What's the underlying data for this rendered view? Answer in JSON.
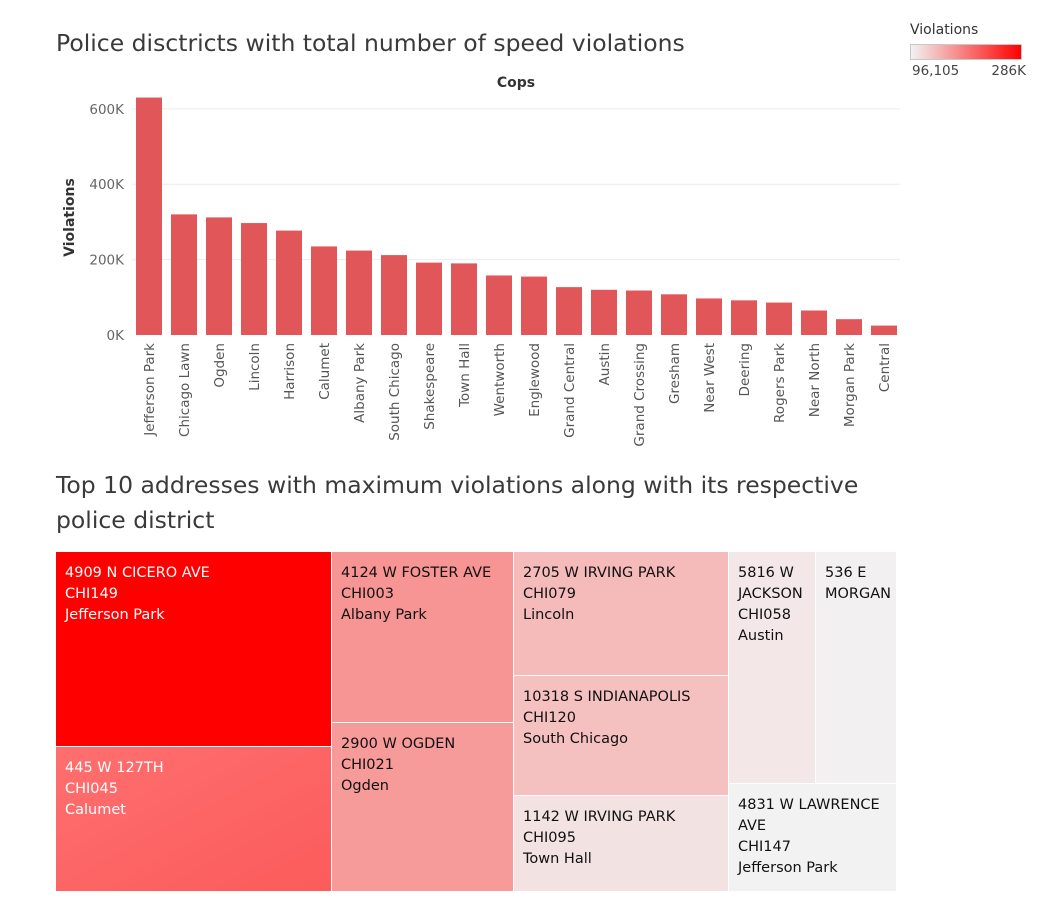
{
  "title_top": "Police disctricts with total number of speed violations",
  "title_bottom": "Top 10 addresses with maximum violations along with its respective police district",
  "legend": {
    "title": "Violations",
    "min_label": "96,105",
    "max_label": "286K",
    "colors": [
      "#f2f2f2",
      "#ff0000"
    ]
  },
  "chart_data": [
    {
      "type": "bar",
      "title": "",
      "column_header": "Cops",
      "xlabel": "",
      "ylabel": "Violations",
      "ylim": [
        0,
        650000
      ],
      "yticks": [
        0,
        200000,
        400000,
        600000
      ],
      "ytick_labels": [
        "0K",
        "200K",
        "400K",
        "600K"
      ],
      "grid": true,
      "bar_color": "#e15759",
      "categories": [
        "Jefferson Park",
        "Chicago Lawn",
        "Ogden",
        "Lincoln",
        "Harrison",
        "Calumet",
        "Albany Park",
        "South Chicago",
        "Shakespeare",
        "Town Hall",
        "Wentworth",
        "Englewood",
        "Grand Central",
        "Austin",
        "Grand Crossing",
        "Gresham",
        "Near West",
        "Deering",
        "Rogers Park",
        "Near North",
        "Morgan Park",
        "Central"
      ],
      "values": [
        630000,
        320000,
        312000,
        297000,
        277000,
        235000,
        224000,
        212000,
        192000,
        190000,
        158000,
        155000,
        127000,
        120000,
        118000,
        108000,
        97000,
        92000,
        86000,
        65000,
        42000,
        25000
      ]
    },
    {
      "type": "treemap",
      "title": "",
      "size_measure": "Violations",
      "color_range": [
        "#f2f2f2",
        "#ff0000"
      ],
      "items": [
        {
          "address": "4909 N CICERO AVE",
          "camera": "CHI149",
          "district": "Jefferson Park",
          "violations": 286000
        },
        {
          "address": "445 W 127TH",
          "camera": "CHI045",
          "district": "Calumet",
          "violations": 235000
        },
        {
          "address": "4124 W FOSTER AVE",
          "camera": "CHI003",
          "district": "Albany Park",
          "violations": 170000
        },
        {
          "address": "2900 W OGDEN",
          "camera": "CHI021",
          "district": "Ogden",
          "violations": 165000
        },
        {
          "address": "2705 W IRVING PARK",
          "camera": "CHI079",
          "district": "Lincoln",
          "violations": 140000
        },
        {
          "address": "10318 S INDIANAPOLIS",
          "camera": "CHI120",
          "district": "South Chicago",
          "violations": 135000
        },
        {
          "address": "1142 W IRVING PARK",
          "camera": "CHI095",
          "district": "Town Hall",
          "violations": 109000
        },
        {
          "address": "5816 W JACKSON",
          "camera": "CHI058",
          "district": "Austin",
          "violations": 105000
        },
        {
          "address": "536 E MORGAN",
          "camera": "",
          "district": "",
          "violations": 98000
        },
        {
          "address": "4831 W LAWRENCE AVE",
          "camera": "CHI147",
          "district": "Jefferson Park",
          "violations": 96105
        }
      ]
    }
  ]
}
